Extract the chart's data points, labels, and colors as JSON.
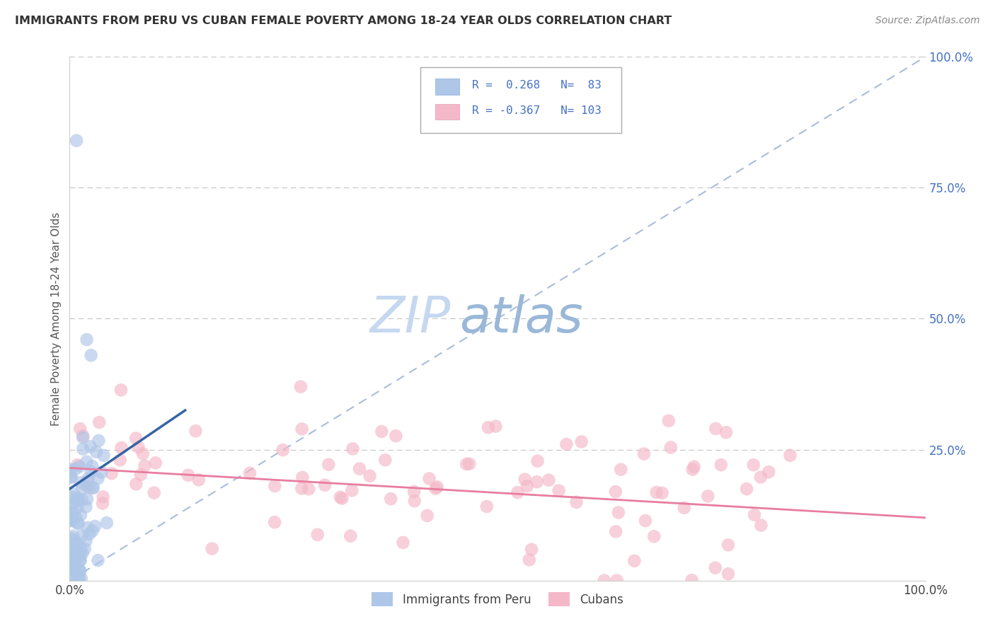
{
  "title": "IMMIGRANTS FROM PERU VS CUBAN FEMALE POVERTY AMONG 18-24 YEAR OLDS CORRELATION CHART",
  "source": "Source: ZipAtlas.com",
  "ylabel": "Female Poverty Among 18-24 Year Olds",
  "xlim": [
    0,
    1
  ],
  "ylim": [
    0,
    1
  ],
  "legend_text1": "R =  0.268   N=  83",
  "legend_text2": "R = -0.367   N= 103",
  "watermark_left": "ZIP",
  "watermark_right": "atlas",
  "color_peru": "#aec6e8",
  "color_cuba": "#f4b8c8",
  "color_line_peru": "#3465a4",
  "color_line_cuba": "#e87da0",
  "color_diag": "#aabcdd",
  "background": "#ffffff",
  "peru_R": 0.268,
  "peru_N": 83,
  "cuba_R": -0.367,
  "cuba_N": 103,
  "random_seed": 42
}
